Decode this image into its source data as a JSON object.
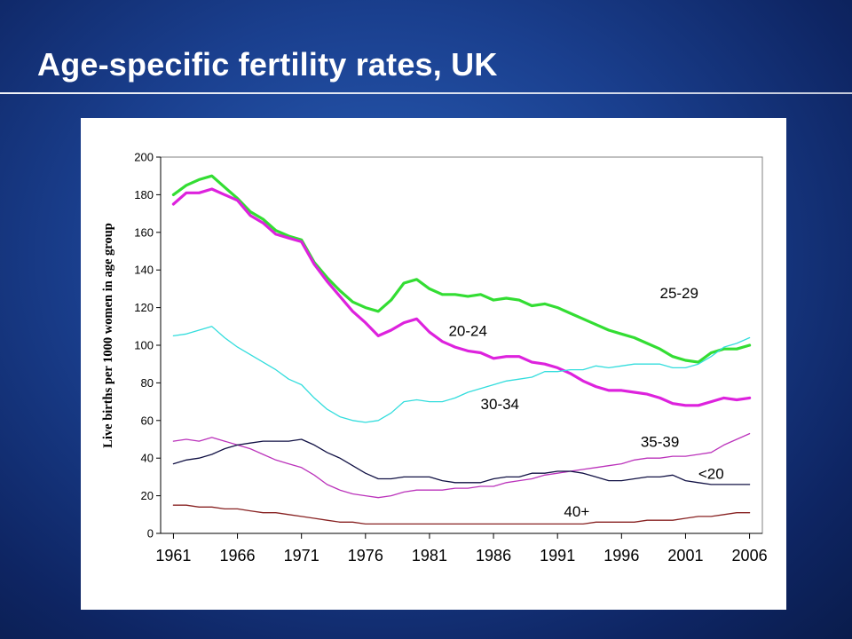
{
  "slide": {
    "title": "Age-specific fertility rates, UK"
  },
  "chart_data": {
    "type": "line",
    "title": "",
    "xlabel": "",
    "ylabel": "Live births per 1000 women in age group",
    "xlim": [
      1961,
      2006
    ],
    "ylim": [
      0,
      200
    ],
    "x_ticks": [
      1961,
      1966,
      1971,
      1976,
      1981,
      1986,
      1991,
      1996,
      2001,
      2006
    ],
    "y_ticks": [
      0,
      20,
      40,
      60,
      80,
      100,
      120,
      140,
      160,
      180,
      200
    ],
    "grid": false,
    "legend": "none",
    "x": [
      1961,
      1962,
      1963,
      1964,
      1965,
      1966,
      1967,
      1968,
      1969,
      1970,
      1971,
      1972,
      1973,
      1974,
      1975,
      1976,
      1977,
      1978,
      1979,
      1980,
      1981,
      1982,
      1983,
      1984,
      1985,
      1986,
      1987,
      1988,
      1989,
      1990,
      1991,
      1992,
      1993,
      1994,
      1995,
      1996,
      1997,
      1998,
      1999,
      2000,
      2001,
      2002,
      2003,
      2004,
      2005,
      2006
    ],
    "series": [
      {
        "name": "25-29",
        "color": "#33dd33",
        "width": 3.2,
        "values": [
          180,
          185,
          188,
          190,
          184,
          178,
          171,
          167,
          161,
          158,
          156,
          144,
          136,
          129,
          123,
          120,
          118,
          124,
          133,
          135,
          130,
          127,
          127,
          126,
          127,
          124,
          125,
          124,
          121,
          122,
          120,
          117,
          114,
          111,
          108,
          106,
          104,
          101,
          98,
          94,
          92,
          91,
          96,
          98,
          98,
          100
        ]
      },
      {
        "name": "20-24",
        "color": "#dd22dd",
        "width": 3.2,
        "values": [
          175,
          181,
          181,
          183,
          180,
          177,
          169,
          165,
          159,
          157,
          155,
          143,
          134,
          126,
          118,
          112,
          105,
          108,
          112,
          114,
          107,
          102,
          99,
          97,
          96,
          93,
          94,
          94,
          91,
          90,
          88,
          85,
          81,
          78,
          76,
          76,
          75,
          74,
          72,
          69,
          68,
          68,
          70,
          72,
          71,
          72
        ]
      },
      {
        "name": "30-34",
        "color": "#33dddd",
        "width": 1.3,
        "values": [
          105,
          106,
          108,
          110,
          104,
          99,
          95,
          91,
          87,
          82,
          79,
          72,
          66,
          62,
          60,
          59,
          60,
          64,
          70,
          71,
          70,
          70,
          72,
          75,
          77,
          79,
          81,
          82,
          83,
          86,
          86,
          87,
          87,
          89,
          88,
          89,
          90,
          90,
          90,
          88,
          88,
          90,
          94,
          99,
          101,
          104
        ]
      },
      {
        "name": "35-39",
        "color": "#bb33bb",
        "width": 1.3,
        "values": [
          49,
          50,
          49,
          51,
          49,
          47,
          45,
          42,
          39,
          37,
          35,
          31,
          26,
          23,
          21,
          20,
          19,
          20,
          22,
          23,
          23,
          23,
          24,
          24,
          25,
          25,
          27,
          28,
          29,
          31,
          32,
          33,
          34,
          35,
          36,
          37,
          39,
          40,
          40,
          41,
          41,
          42,
          43,
          47,
          50,
          53
        ]
      },
      {
        "name": "<20",
        "color": "#111144",
        "width": 1.3,
        "values": [
          37,
          39,
          40,
          42,
          45,
          47,
          48,
          49,
          49,
          49,
          50,
          47,
          43,
          40,
          36,
          32,
          29,
          29,
          30,
          30,
          30,
          28,
          27,
          27,
          27,
          29,
          30,
          30,
          32,
          32,
          33,
          33,
          32,
          30,
          28,
          28,
          29,
          30,
          30,
          31,
          28,
          27,
          26,
          26,
          26,
          26
        ]
      },
      {
        "name": "40+",
        "color": "#882222",
        "width": 1.3,
        "values": [
          15,
          15,
          14,
          14,
          13,
          13,
          12,
          11,
          11,
          10,
          9,
          8,
          7,
          6,
          6,
          5,
          5,
          5,
          5,
          5,
          5,
          5,
          5,
          5,
          5,
          5,
          5,
          5,
          5,
          5,
          5,
          5,
          5,
          6,
          6,
          6,
          6,
          7,
          7,
          7,
          8,
          9,
          9,
          10,
          11,
          11
        ]
      }
    ],
    "annotations": [
      {
        "text": "25-29",
        "x": 2000.5,
        "y": 125
      },
      {
        "text": "20-24",
        "x": 1984,
        "y": 105
      },
      {
        "text": "30-34",
        "x": 1986.5,
        "y": 66
      },
      {
        "text": "35-39",
        "x": 1999,
        "y": 46
      },
      {
        "text": "<20",
        "x": 2003,
        "y": 29
      },
      {
        "text": "40+",
        "x": 1992.5,
        "y": 9
      }
    ]
  }
}
